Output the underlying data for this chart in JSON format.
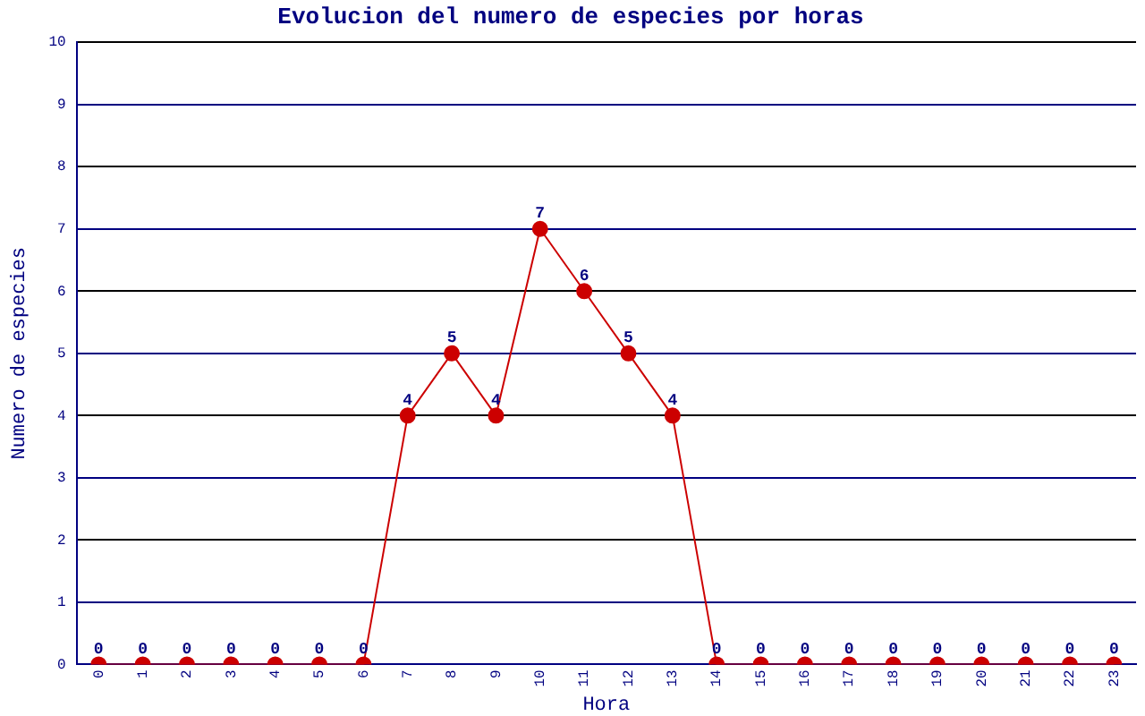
{
  "chart_data": {
    "type": "line",
    "title": "Evolucion del numero de especies por horas",
    "xlabel": "Hora",
    "ylabel": "Numero de especies",
    "categories": [
      "0",
      "1",
      "2",
      "3",
      "4",
      "5",
      "6",
      "7",
      "8",
      "9",
      "10",
      "11",
      "12",
      "13",
      "14",
      "15",
      "16",
      "17",
      "18",
      "19",
      "20",
      "21",
      "22",
      "23"
    ],
    "series": [
      {
        "color": "#cc0000",
        "values": [
          0,
          0,
          0,
          0,
          0,
          0,
          0,
          4,
          5,
          4,
          7,
          6,
          5,
          4,
          0,
          0,
          0,
          0,
          0,
          0,
          0,
          0,
          0,
          0
        ]
      }
    ],
    "ylim": [
      0,
      10
    ],
    "yticks": [
      0,
      1,
      2,
      3,
      4,
      5,
      6,
      7,
      8,
      9,
      10
    ],
    "grid": "y",
    "legend": false,
    "marker": "circle",
    "line_style": "solid",
    "data_labels": true
  }
}
